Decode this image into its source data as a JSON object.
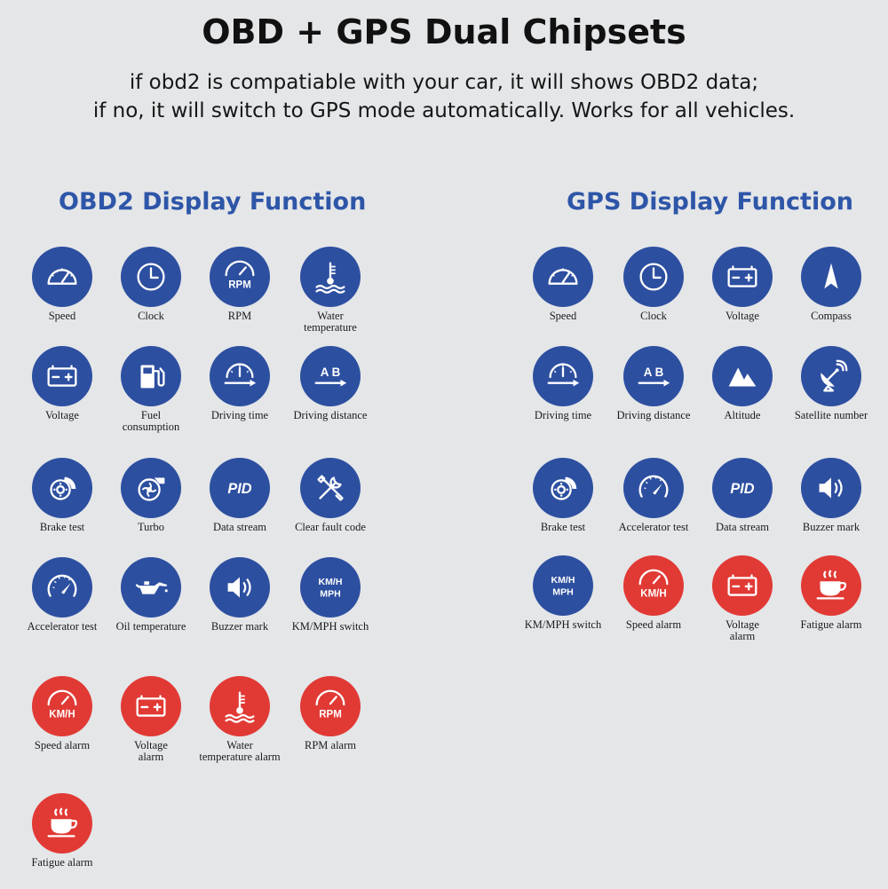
{
  "header": {
    "title": "OBD + GPS Dual Chipsets",
    "subtitle_line1": "if obd2 is compatiable with your car, it will shows OBD2 data;",
    "subtitle_line2": "if no, it will switch to GPS mode automatically. Works for all vehicles."
  },
  "colors": {
    "blue_icon": "#2d4fa0",
    "red_icon": "#e13a35",
    "heading": "#2e56a8",
    "background": "#e4e6e8"
  },
  "obd": {
    "title": "OBD2 Display Function",
    "items": [
      {
        "label": "Speed",
        "icon": "speedometer-icon",
        "color": "blue"
      },
      {
        "label": "Clock",
        "icon": "clock-icon",
        "color": "blue"
      },
      {
        "label": "RPM",
        "icon": "rpm-gauge-icon",
        "color": "blue"
      },
      {
        "label": "Water\ntemperature",
        "icon": "water-temperature-icon",
        "color": "blue"
      },
      {
        "label": "Voltage",
        "icon": "battery-icon",
        "color": "blue"
      },
      {
        "label": "Fuel\nconsumption",
        "icon": "fuel-pump-icon",
        "color": "blue"
      },
      {
        "label": "Driving time",
        "icon": "driving-time-icon",
        "color": "blue"
      },
      {
        "label": "Driving distance",
        "icon": "driving-distance-icon",
        "color": "blue"
      },
      {
        "label": "Brake test",
        "icon": "brake-icon",
        "color": "blue"
      },
      {
        "label": "Turbo",
        "icon": "turbo-icon",
        "color": "blue"
      },
      {
        "label": "Data stream",
        "icon": "pid-icon",
        "color": "blue"
      },
      {
        "label": "Clear fault code",
        "icon": "tools-icon",
        "color": "blue"
      },
      {
        "label": "Accelerator test",
        "icon": "accelerator-gauge-icon",
        "color": "blue"
      },
      {
        "label": "Oil temperature",
        "icon": "oil-can-icon",
        "color": "blue"
      },
      {
        "label": "Buzzer mark",
        "icon": "speaker-icon",
        "color": "blue"
      },
      {
        "label": "KM/MPH switch",
        "icon": "kmh-mph-icon",
        "color": "blue"
      },
      {
        "label": "Speed alarm",
        "icon": "kmh-gauge-icon",
        "color": "red"
      },
      {
        "label": "Voltage\nalarm",
        "icon": "battery-icon",
        "color": "red"
      },
      {
        "label": "Water\ntemperature alarm",
        "icon": "water-temperature-icon",
        "color": "red"
      },
      {
        "label": "RPM alarm",
        "icon": "rpm-gauge-icon",
        "color": "red"
      },
      {
        "label": "Fatigue alarm",
        "icon": "coffee-cup-icon",
        "color": "red"
      }
    ]
  },
  "gps": {
    "title": "GPS Display Function",
    "items": [
      {
        "label": "Speed",
        "icon": "speedometer-icon",
        "color": "blue"
      },
      {
        "label": "Clock",
        "icon": "clock-icon",
        "color": "blue"
      },
      {
        "label": "Voltage",
        "icon": "battery-icon",
        "color": "blue"
      },
      {
        "label": "Compass",
        "icon": "compass-icon",
        "color": "blue"
      },
      {
        "label": "Driving time",
        "icon": "driving-time-icon",
        "color": "blue"
      },
      {
        "label": "Driving distance",
        "icon": "driving-distance-icon",
        "color": "blue"
      },
      {
        "label": "Altitude",
        "icon": "mountain-icon",
        "color": "blue"
      },
      {
        "label": "Satellite number",
        "icon": "satellite-icon",
        "color": "blue"
      },
      {
        "label": "Brake test",
        "icon": "brake-icon",
        "color": "blue"
      },
      {
        "label": "Accelerator test",
        "icon": "accelerator-gauge-icon",
        "color": "blue"
      },
      {
        "label": "Data stream",
        "icon": "pid-icon",
        "color": "blue"
      },
      {
        "label": "Buzzer mark",
        "icon": "speaker-icon",
        "color": "blue"
      },
      {
        "label": "KM/MPH switch",
        "icon": "kmh-mph-icon",
        "color": "blue"
      },
      {
        "label": "Speed alarm",
        "icon": "kmh-gauge-icon",
        "color": "red"
      },
      {
        "label": "Voltage\nalarm",
        "icon": "battery-icon",
        "color": "red"
      },
      {
        "label": "Fatigue alarm",
        "icon": "coffee-cup-icon",
        "color": "red"
      }
    ]
  }
}
